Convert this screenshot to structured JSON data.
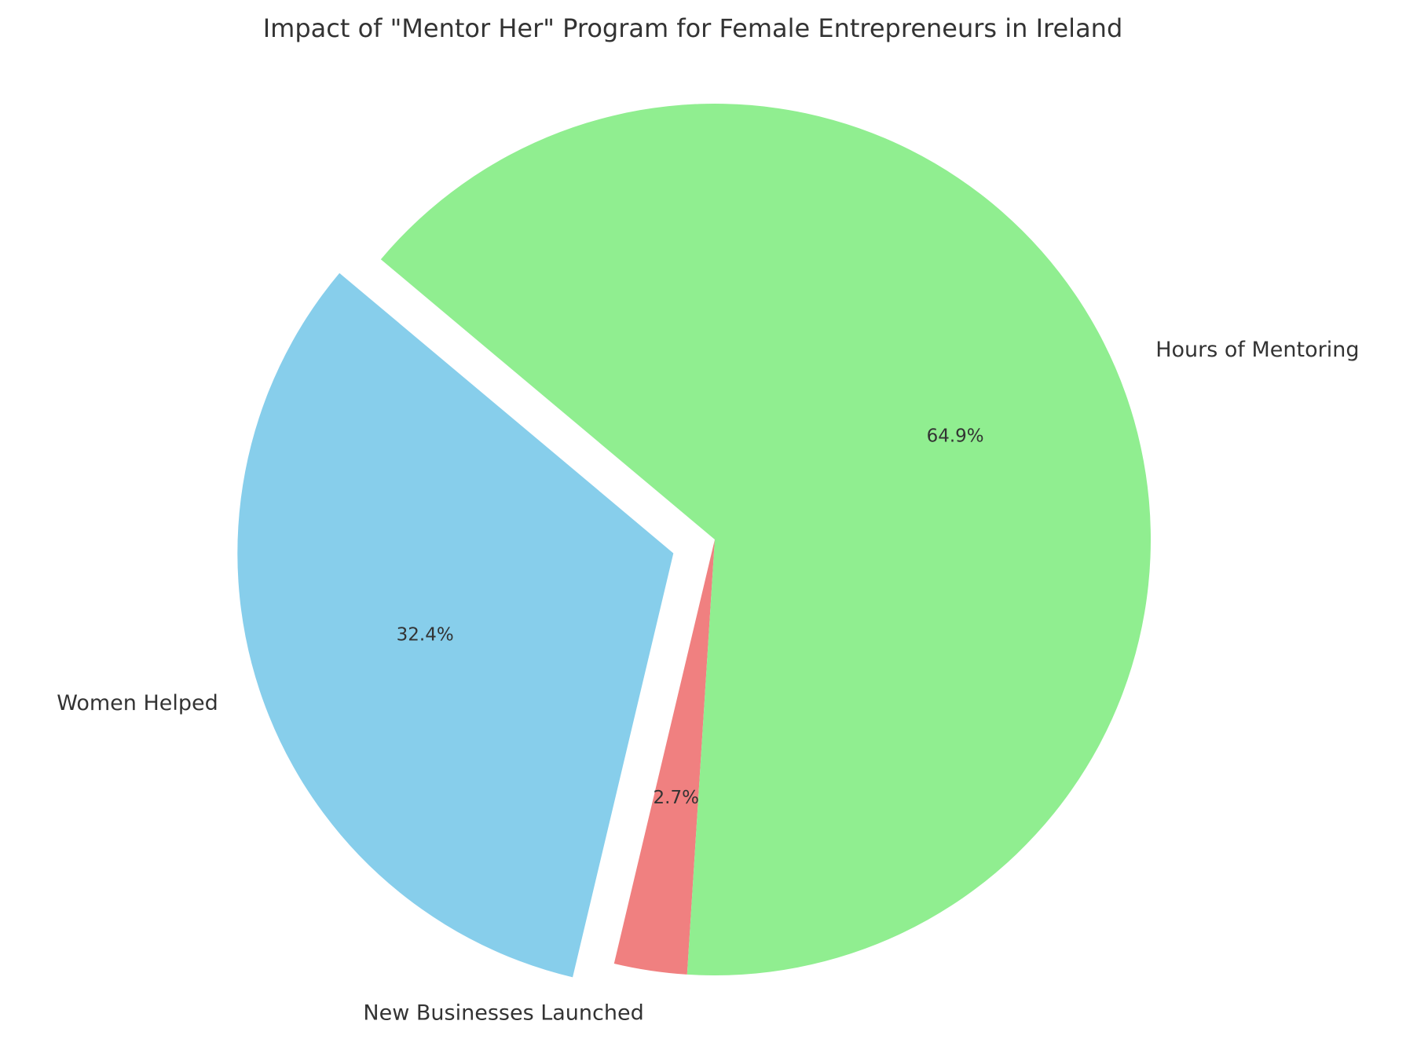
{
  "chart_data": {
    "type": "pie",
    "title": "Impact of \"Mentor Her\" Program for Female Entrepreneurs in Ireland",
    "categories": [
      "Women Helped",
      "New Businesses Launched",
      "Hours of Mentoring"
    ],
    "values": [
      32.4,
      2.7,
      64.9
    ],
    "value_labels": [
      "32.4%",
      "2.7%",
      "64.9%"
    ],
    "colors": [
      "#87ceeb",
      "#f08080",
      "#90ee90"
    ],
    "explode": [
      0.1,
      0,
      0
    ],
    "startangle": 140
  }
}
